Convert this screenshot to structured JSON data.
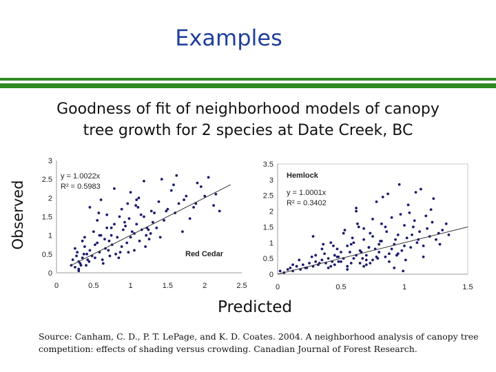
{
  "slide": {
    "title": "Examples",
    "subtitle_line1": "Goodness of fit of neighborhood models of canopy",
    "subtitle_line2": "tree growth for 2 species at Date Creek, BC",
    "y_axis_label": "Observed",
    "x_axis_label": "Predicted",
    "source": "Source: Canham, C. D., P. T. LePage, and K. D. Coates. 2004. A neighborhood analysis of canopy tree competition: effects of shading versus crowding. Canadian Journal of Forest Research."
  },
  "colors": {
    "title": "#1f3f9e",
    "rule": "#2f8a22",
    "points": "#1a1a6e",
    "fit_line": "#333333"
  },
  "chart_data": [
    {
      "type": "scatter",
      "species": "Red Cedar",
      "equation": "y = 1.0022x",
      "r2": "R² = 0.5983",
      "xlim": [
        0,
        2.5
      ],
      "ylim": [
        0,
        3
      ],
      "xticks": [
        "0",
        "0.5",
        "1",
        "1.5",
        "2",
        "2.5"
      ],
      "yticks": [
        "0",
        "0.5",
        "1",
        "1.5",
        "2",
        "2.5",
        "3"
      ],
      "fit": {
        "slope": 1.0022,
        "x_range": [
          0.18,
          2.35
        ]
      },
      "points_x": [
        0.2,
        0.22,
        0.25,
        0.27,
        0.3,
        0.32,
        0.35,
        0.37,
        0.4,
        0.42,
        0.45,
        0.3,
        0.28,
        0.38,
        0.48,
        0.35,
        0.25,
        0.44,
        0.33,
        0.41,
        0.5,
        0.52,
        0.55,
        0.58,
        0.6,
        0.62,
        0.65,
        0.68,
        0.7,
        0.72,
        0.75,
        0.78,
        0.8,
        0.82,
        0.85,
        0.88,
        0.9,
        0.55,
        0.63,
        0.71,
        0.57,
        0.66,
        0.74,
        0.86,
        0.93,
        0.95,
        0.98,
        1.0,
        1.02,
        1.05,
        1.08,
        1.1,
        1.12,
        1.15,
        1.18,
        1.2,
        1.22,
        1.25,
        1.28,
        1.3,
        1.0,
        1.07,
        1.14,
        1.21,
        1.27,
        0.96,
        1.11,
        1.35,
        1.38,
        1.4,
        1.45,
        1.5,
        1.55,
        1.6,
        1.65,
        1.7,
        1.75,
        1.8,
        1.85,
        1.9,
        2.0,
        2.05,
        2.12,
        2.2,
        1.42,
        1.58,
        1.72,
        1.95,
        0.6,
        0.45,
        0.78,
        1.05,
        1.32,
        0.68,
        0.38,
        0.88,
        1.18,
        0.52,
        0.74,
        0.92,
        1.48,
        1.62,
        0.84,
        0.97,
        1.24,
        0.3,
        0.58,
        1.88,
        2.15,
        1.08
      ],
      "points_y": [
        0.2,
        0.35,
        0.15,
        0.45,
        0.3,
        0.25,
        0.4,
        0.5,
        0.2,
        0.35,
        0.6,
        0.1,
        0.55,
        0.7,
        0.45,
        0.85,
        0.65,
        0.3,
        0.2,
        0.5,
        1.1,
        0.4,
        0.8,
        0.55,
        1.0,
        0.35,
        0.9,
        1.2,
        0.6,
        0.45,
        0.75,
        1.3,
        0.5,
        0.95,
        1.5,
        0.7,
        1.15,
        1.4,
        0.25,
        0.85,
        1.6,
        0.65,
        1.0,
        0.55,
        1.25,
        0.8,
        1.45,
        0.95,
        1.1,
        0.6,
        1.3,
        1.75,
        0.85,
        1.15,
        1.5,
        0.7,
        1.2,
        0.9,
        1.65,
        1.35,
        2.15,
        1.8,
        1.55,
        1.0,
        1.05,
        1.85,
        2.0,
        1.2,
        1.9,
        0.95,
        1.4,
        1.7,
        2.2,
        1.6,
        1.85,
        1.1,
        2.05,
        1.45,
        1.75,
        2.4,
        2.05,
        2.55,
        1.8,
        1.65,
        2.5,
        2.35,
        1.95,
        2.3,
        1.95,
        1.75,
        2.25,
        1.05,
        1.6,
        1.55,
        0.95,
        1.7,
        2.45,
        0.75,
        1.2,
        1.35,
        1.65,
        2.6,
        0.4,
        0.55,
        1.15,
        0.05,
        1.0,
        1.85,
        2.1,
        1.95
      ]
    },
    {
      "type": "scatter",
      "species": "Hemlock",
      "equation": "y = 1.0001x",
      "r2": "R² = 0.3402",
      "xlim": [
        0,
        1.5
      ],
      "ylim": [
        0,
        3.5
      ],
      "xticks": [
        "0",
        "0.5",
        "1",
        "1.5"
      ],
      "yticks": [
        "0",
        "0.5",
        "1",
        "1.5",
        "2",
        "2.5",
        "3",
        "3.5"
      ],
      "fit": {
        "slope": 1.0001,
        "x_range": [
          0.0,
          1.5
        ]
      },
      "points_x": [
        0.02,
        0.05,
        0.08,
        0.1,
        0.12,
        0.15,
        0.18,
        0.2,
        0.22,
        0.25,
        0.28,
        0.3,
        0.32,
        0.35,
        0.38,
        0.4,
        0.42,
        0.45,
        0.48,
        0.5,
        0.12,
        0.17,
        0.23,
        0.27,
        0.33,
        0.37,
        0.43,
        0.47,
        0.52,
        0.55,
        0.58,
        0.6,
        0.62,
        0.65,
        0.68,
        0.7,
        0.72,
        0.75,
        0.78,
        0.8,
        0.53,
        0.57,
        0.63,
        0.67,
        0.73,
        0.77,
        0.82,
        0.85,
        0.88,
        0.9,
        0.92,
        0.95,
        0.98,
        1.0,
        1.02,
        1.05,
        1.08,
        1.1,
        1.12,
        1.15,
        1.18,
        1.2,
        1.22,
        1.25,
        1.28,
        1.3,
        1.35,
        0.4,
        0.45,
        0.5,
        0.55,
        0.6,
        0.65,
        0.7,
        0.75,
        0.8,
        0.85,
        0.9,
        0.95,
        1.0,
        0.3,
        0.35,
        0.42,
        0.48,
        0.52,
        0.58,
        0.62,
        0.68,
        0.72,
        0.78,
        0.82,
        0.87,
        0.93,
        0.97,
        1.03,
        1.07,
        1.13,
        1.17,
        1.23,
        1.27,
        0.62,
        0.68,
        0.75,
        0.83,
        0.88,
        0.96,
        1.04,
        1.09,
        0.55,
        0.7,
        0.92,
        1.15,
        0.28,
        0.44,
        0.66,
        0.81,
        0.99,
        1.21,
        0.36,
        0.59,
        0.73,
        0.86,
        0.94,
        1.06,
        0.47,
        0.64,
        0.79,
        1.01,
        1.11,
        1.33
      ],
      "points_y": [
        0.1,
        0.05,
        0.15,
        0.2,
        0.1,
        0.25,
        0.15,
        0.3,
        0.2,
        0.35,
        0.25,
        0.4,
        0.3,
        0.45,
        0.35,
        0.5,
        0.25,
        0.6,
        0.4,
        0.7,
        0.3,
        0.45,
        0.2,
        0.55,
        0.35,
        0.65,
        0.4,
        0.8,
        0.5,
        0.9,
        0.35,
        1.0,
        0.6,
        0.75,
        1.1,
        0.45,
        0.85,
        1.2,
        0.55,
        0.95,
        1.4,
        0.7,
        1.6,
        0.5,
        1.3,
        0.8,
        1.05,
        1.5,
        0.65,
        1.8,
        0.95,
        1.25,
        0.75,
        1.55,
        1.15,
        0.85,
        1.7,
        1.0,
        1.35,
        0.9,
        1.45,
        1.2,
        1.65,
        1.1,
        0.95,
        1.4,
        1.25,
        0.2,
        0.3,
        0.4,
        0.25,
        0.5,
        0.35,
        0.6,
        0.45,
        0.7,
        0.55,
        0.8,
        0.65,
        0.9,
        0.6,
        0.8,
        1.0,
        0.55,
        1.3,
        0.95,
        2.0,
        1.45,
        0.85,
        2.3,
        1.6,
        2.55,
        1.1,
        1.9,
        2.2,
        1.5,
        2.7,
        1.85,
        2.4,
        1.3,
        2.1,
        0.25,
        1.75,
        2.45,
        0.4,
        2.85,
        1.95,
        2.6,
        0.15,
        0.3,
        0.2,
        0.55,
        1.2,
        0.9,
        0.7,
        1.05,
        0.1,
        2.05,
        0.95,
        1.15,
        0.35,
        1.35,
        0.6,
        1.25,
        0.55,
        1.5,
        0.5,
        0.45,
        1.1,
        1.6
      ]
    }
  ]
}
